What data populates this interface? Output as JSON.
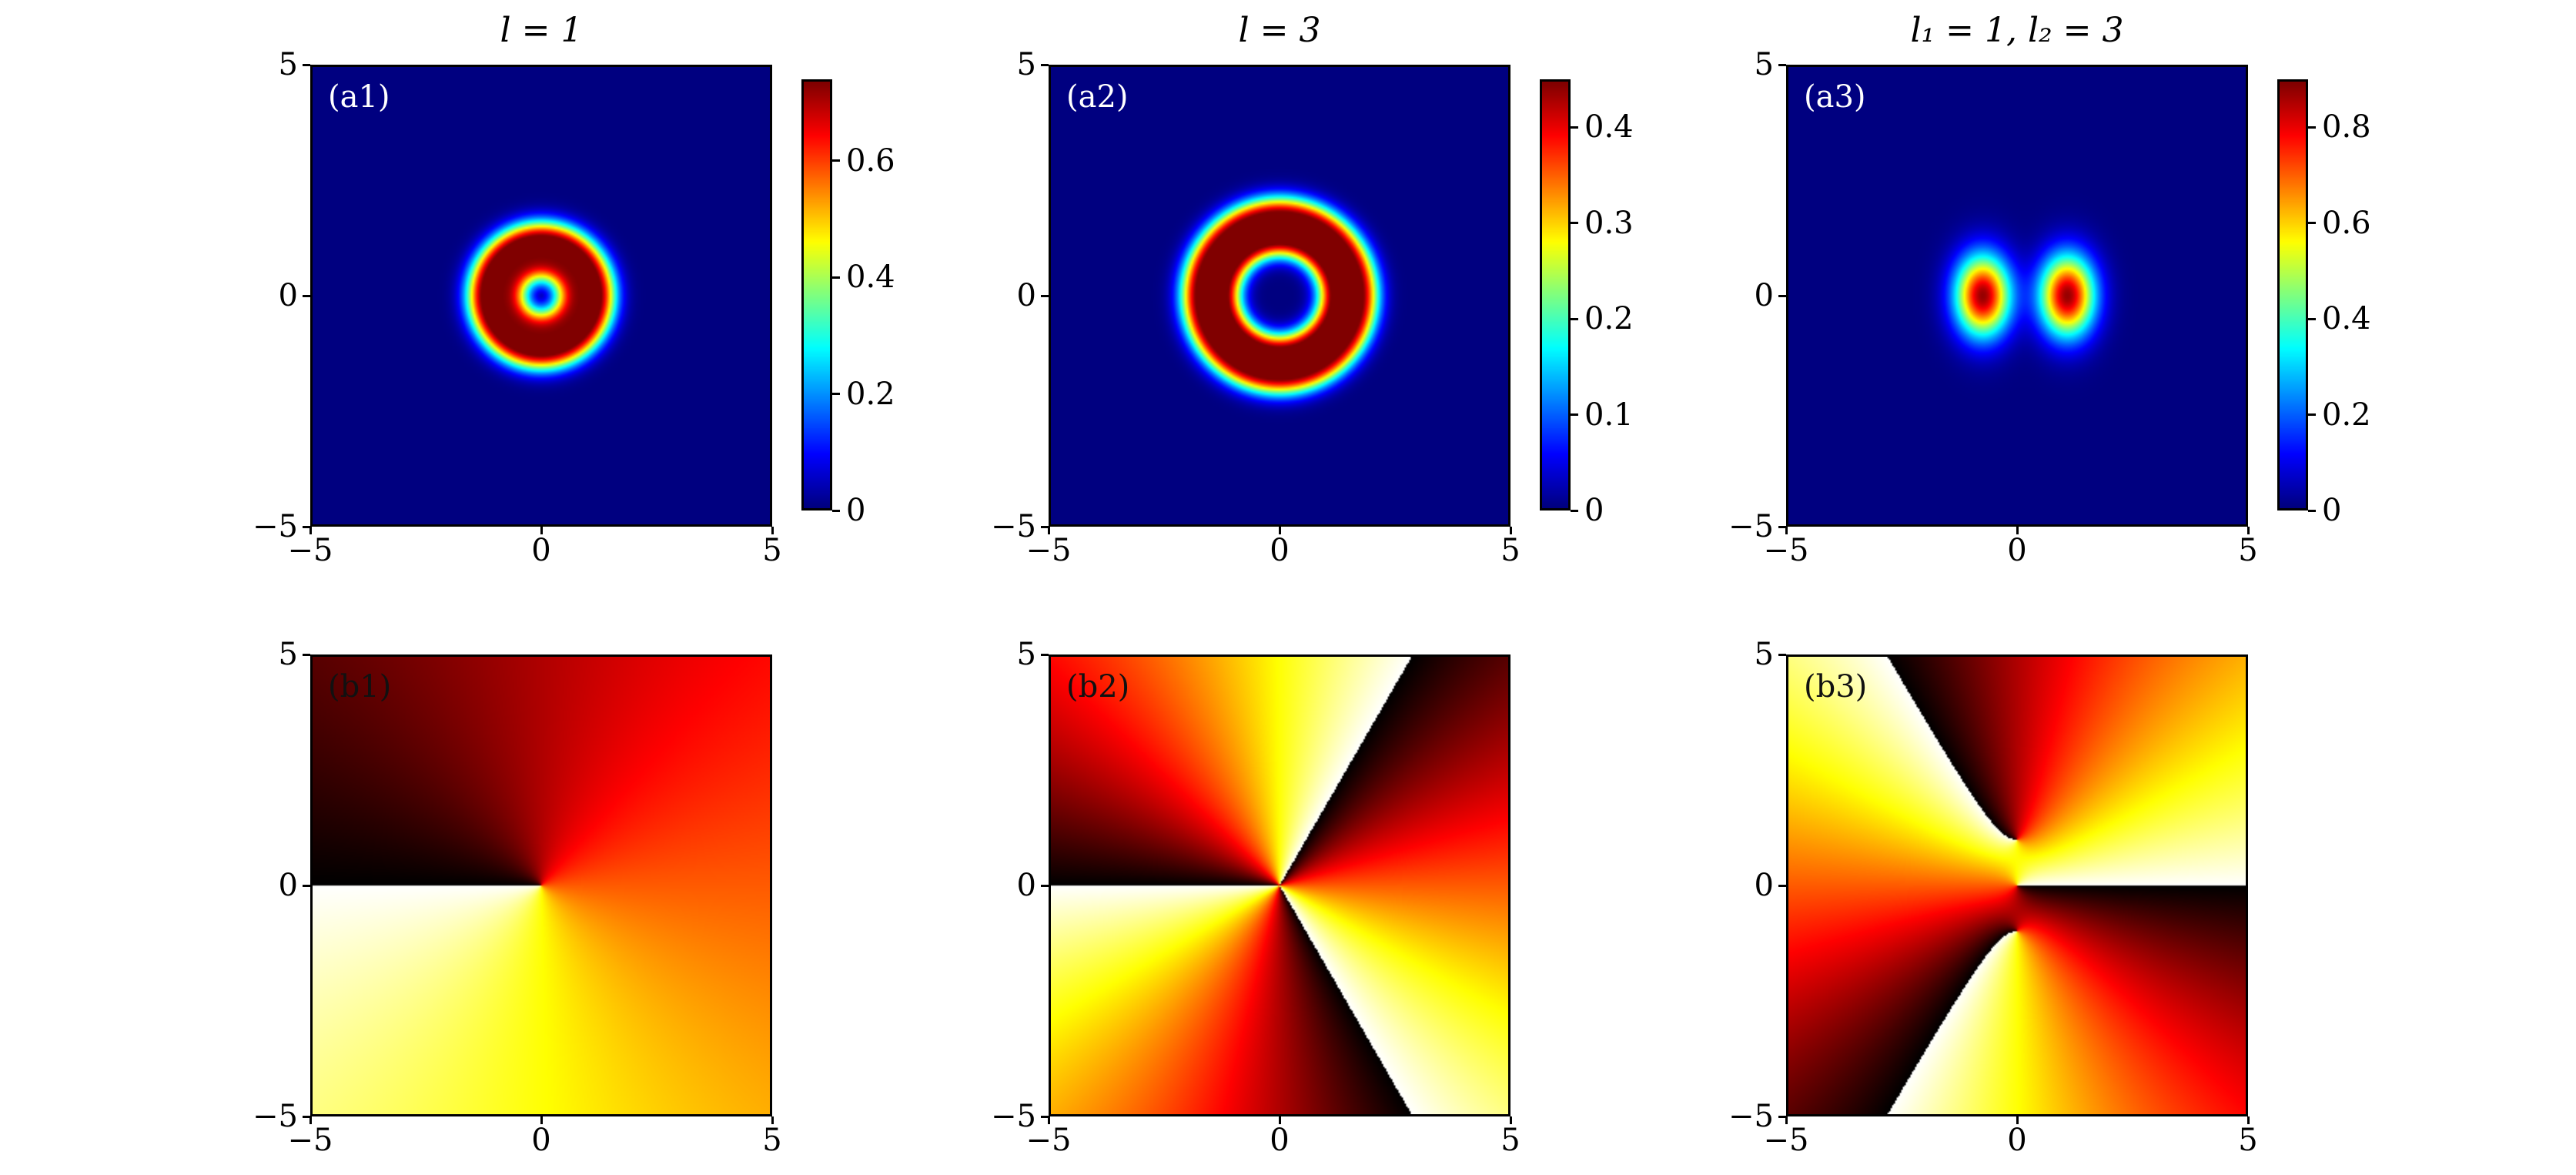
{
  "chart_data": {
    "type": "heatmap",
    "x_range": [
      -5,
      5
    ],
    "y_range": [
      -5,
      5
    ],
    "axis_ticks": [
      "−5",
      "0",
      "5"
    ],
    "axis_tick_values": [
      -5,
      0,
      5
    ],
    "columns": [
      {
        "title": "l = 1",
        "intensity": {
          "label": "(a1)",
          "colormap": "jet",
          "colorbar_ticks": [
            "0",
            "0.2",
            "0.4",
            "0.6"
          ],
          "colorbar_tick_values": [
            0,
            0.2,
            0.4,
            0.6
          ],
          "vmax": 0.74,
          "rings": [
            {
              "r": 0.65,
              "w": 0.28,
              "a": 0.62
            },
            {
              "r": 1.25,
              "w": 0.28,
              "a": 0.72
            }
          ]
        },
        "phase": {
          "label": "(b1)",
          "colormap": "hot",
          "topological_charge": 1
        }
      },
      {
        "title": "l = 3",
        "intensity": {
          "label": "(a2)",
          "colormap": "jet",
          "colorbar_ticks": [
            "0",
            "0.1",
            "0.2",
            "0.3",
            "0.4"
          ],
          "colorbar_tick_values": [
            0,
            0.1,
            0.2,
            0.3,
            0.4
          ],
          "vmax": 0.45,
          "rings": [
            {
              "r": 1.18,
              "w": 0.26,
              "a": 0.43
            },
            {
              "r": 1.78,
              "w": 0.28,
              "a": 0.44
            }
          ]
        },
        "phase": {
          "label": "(b2)",
          "colormap": "hot",
          "topological_charge": 3
        }
      },
      {
        "title": "l₁ = 1,  l₂ = 3",
        "intensity": {
          "label": "(a3)",
          "colormap": "jet",
          "colorbar_ticks": [
            "0",
            "0.2",
            "0.4",
            "0.6",
            "0.8"
          ],
          "colorbar_tick_values": [
            0,
            0.2,
            0.4,
            0.6,
            0.8
          ],
          "vmax": 0.9,
          "lobes": [
            {
              "x": -0.75,
              "y": 0,
              "sx": 0.42,
              "sy": 0.62,
              "a": 0.88
            },
            {
              "x": 1.1,
              "y": 0,
              "sx": 0.42,
              "sy": 0.62,
              "a": 0.88
            }
          ]
        },
        "phase": {
          "label": "(b3)",
          "colormap": "hot",
          "topological_charge": [
            1,
            3
          ]
        }
      }
    ]
  }
}
